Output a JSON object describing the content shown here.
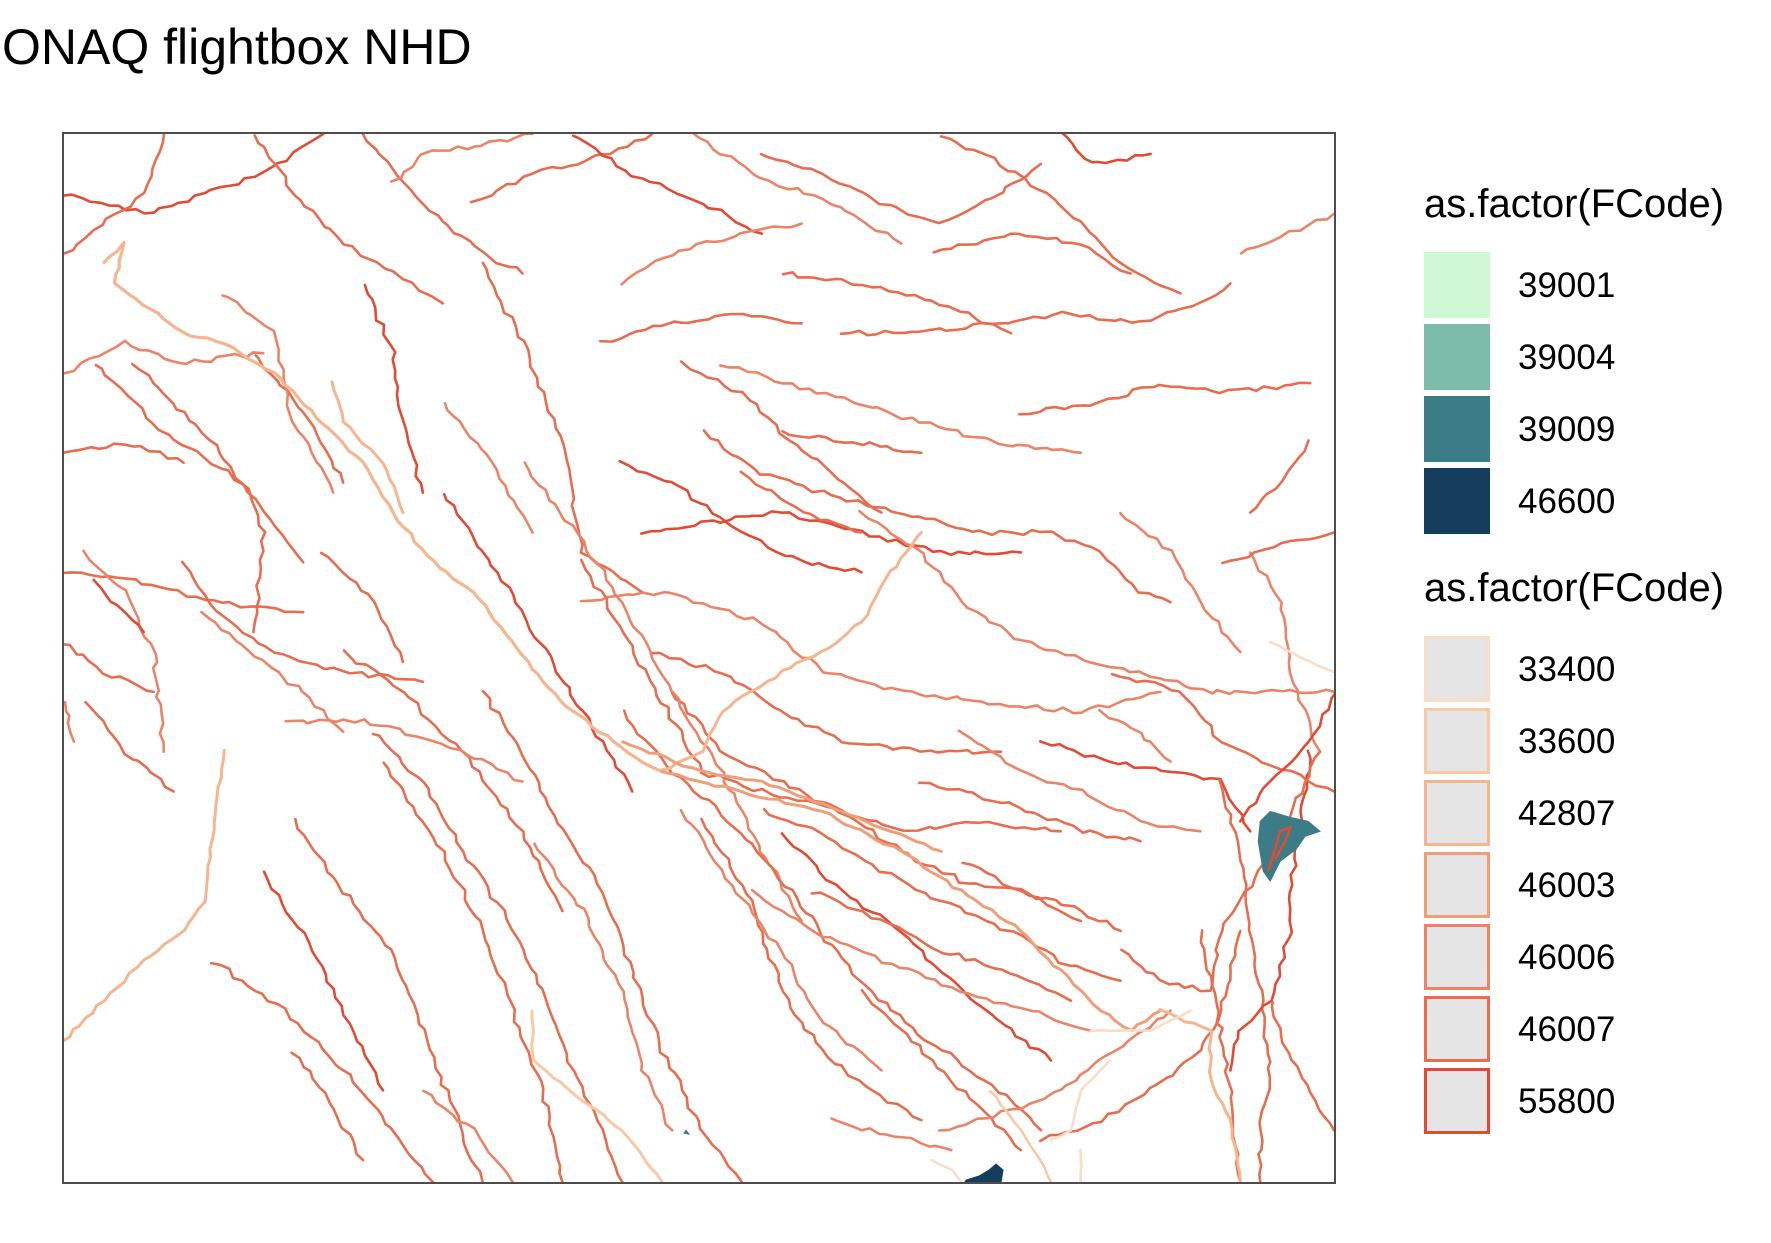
{
  "title": "ONAQ flightbox NHD",
  "map": {
    "background": "#ffffff",
    "frame_color": "#4d4d4d",
    "line_colors": {
      "33400": "#fbdcc4",
      "33600": "#f8c9a4",
      "42807": "#f5b58e",
      "46003": "#f09e78",
      "46006": "#eb8466",
      "46007": "#e86c4e",
      "55800": "#e24a33"
    },
    "polygon_colors": {
      "39009": "#3b7c86",
      "46600": "#143e5c"
    }
  },
  "legends": [
    {
      "title": "as.factor(FCode)",
      "kind": "fill",
      "items": [
        {
          "label": "39001",
          "fill": "#cff8d4",
          "border": "#cff8d4"
        },
        {
          "label": "39004",
          "fill": "#7ebcaa",
          "border": "#7ebcaa"
        },
        {
          "label": "39009",
          "fill": "#3b7c86",
          "border": "#3b7c86"
        },
        {
          "label": "46600",
          "fill": "#143e5c",
          "border": "#143e5c"
        }
      ]
    },
    {
      "title": "as.factor(FCode)",
      "kind": "line",
      "items": [
        {
          "label": "33400",
          "fill": "#e5e5e5",
          "border": "#fbdcc4"
        },
        {
          "label": "33600",
          "fill": "#e5e5e5",
          "border": "#f8c9a4"
        },
        {
          "label": "42807",
          "fill": "#e5e5e5",
          "border": "#f5b58e"
        },
        {
          "label": "46003",
          "fill": "#e5e5e5",
          "border": "#f09e78"
        },
        {
          "label": "46006",
          "fill": "#e5e5e5",
          "border": "#eb8466"
        },
        {
          "label": "46007",
          "fill": "#e5e5e5",
          "border": "#e86c4e"
        },
        {
          "label": "55800",
          "fill": "#e5e5e5",
          "border": "#e24a33"
        }
      ]
    }
  ]
}
